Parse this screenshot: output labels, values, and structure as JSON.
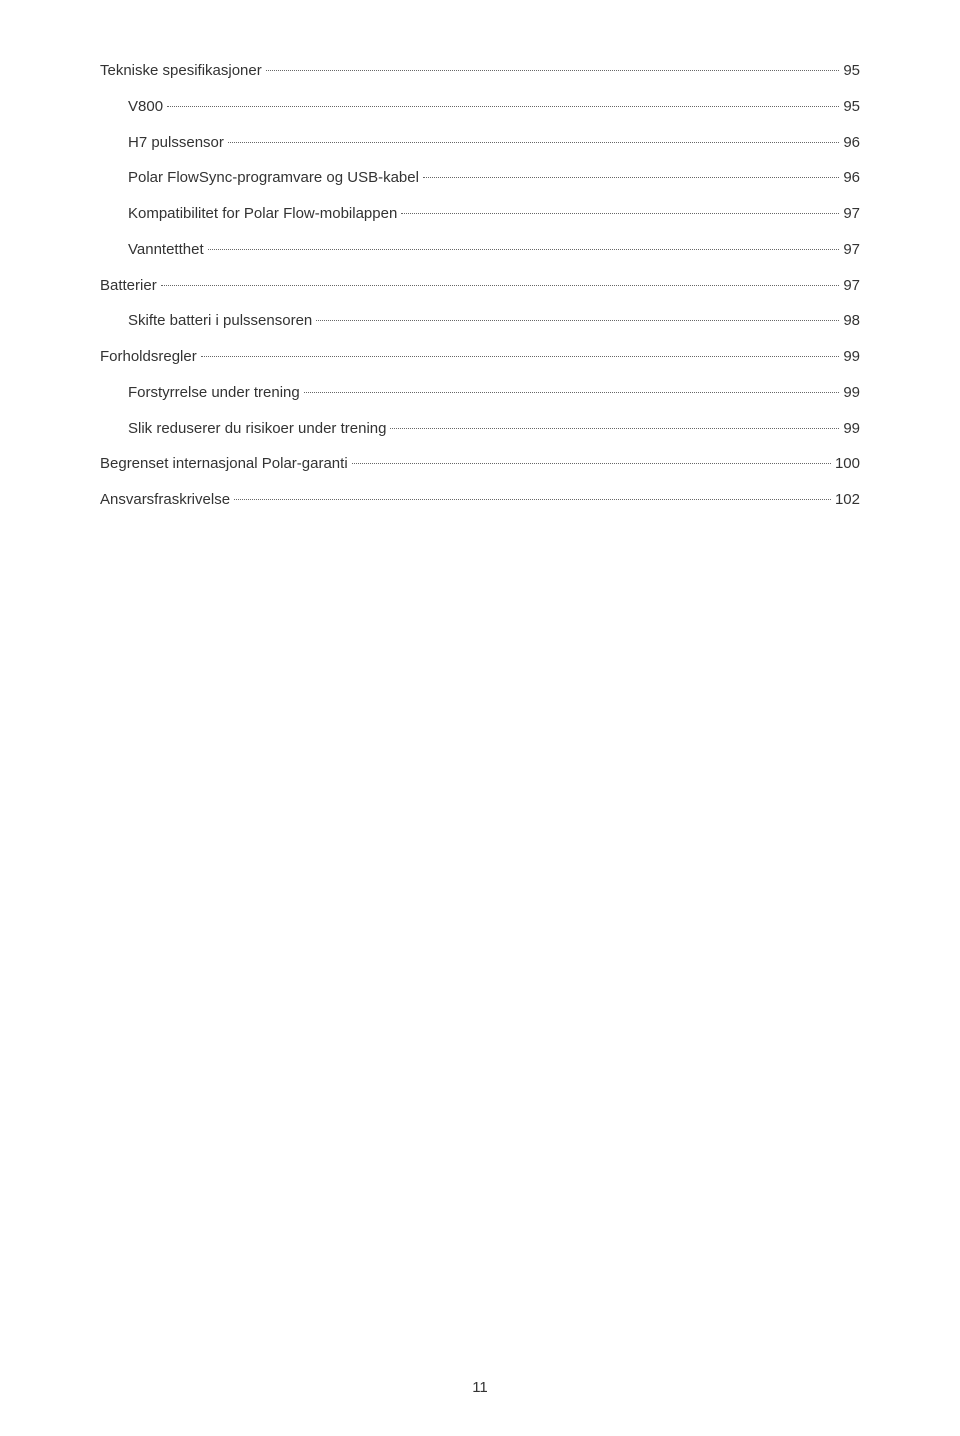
{
  "toc": [
    {
      "label": "Tekniske spesifikasjoner",
      "page": "95",
      "indent": 0
    },
    {
      "label": "V800",
      "page": "95",
      "indent": 1
    },
    {
      "label": "H7 pulssensor",
      "page": "96",
      "indent": 1
    },
    {
      "label": "Polar FlowSync-programvare og USB-kabel",
      "page": "96",
      "indent": 1
    },
    {
      "label": "Kompatibilitet for Polar Flow-mobilappen",
      "page": "97",
      "indent": 1
    },
    {
      "label": "Vanntetthet",
      "page": "97",
      "indent": 1
    },
    {
      "label": "Batterier",
      "page": "97",
      "indent": 0
    },
    {
      "label": "Skifte batteri i pulssensoren",
      "page": "98",
      "indent": 1
    },
    {
      "label": "Forholdsregler",
      "page": "99",
      "indent": 0
    },
    {
      "label": "Forstyrrelse under trening",
      "page": "99",
      "indent": 1
    },
    {
      "label": "Slik reduserer du risikoer under trening",
      "page": "99",
      "indent": 1
    },
    {
      "label": "Begrenset internasjonal Polar-garanti",
      "page": "100",
      "indent": 0
    },
    {
      "label": "Ansvarsfraskrivelse",
      "page": "102",
      "indent": 0
    }
  ],
  "pageNumber": "11"
}
